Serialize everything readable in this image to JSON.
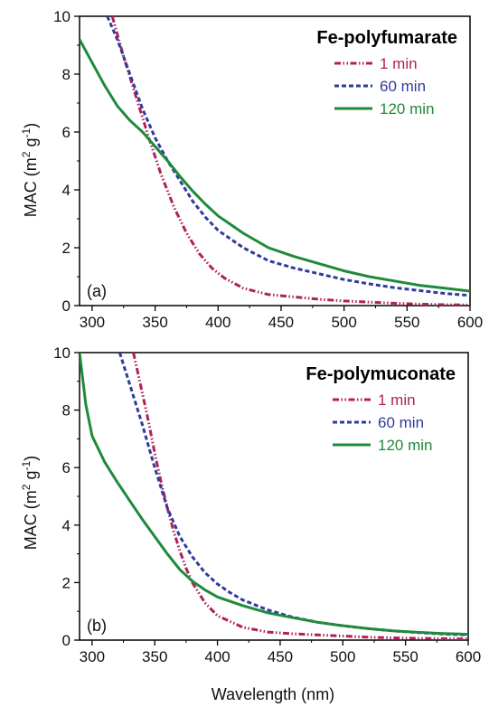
{
  "ylabel": "MAC (m",
  "ylabel_sup1": "2",
  "ylabel_mid": " g",
  "ylabel_sup2": "-1",
  "ylabel_end": ")",
  "xlabel": "Wavelength (nm)",
  "colors": {
    "1 min": "#b0215a",
    "60 min": "#2f3b9c",
    "120 min": "#1f8a3a"
  },
  "chart_data": [
    {
      "type": "line",
      "title": "Fe-polyfumarate",
      "panel_label": "(a)",
      "xlim": [
        290,
        600
      ],
      "ylim": [
        0,
        10
      ],
      "xticks": [
        "300",
        "350",
        "400",
        "450",
        "500",
        "550",
        "600"
      ],
      "yticks": [
        "0",
        "2",
        "4",
        "6",
        "8",
        "10"
      ],
      "legend_position": "top-right",
      "series": [
        {
          "name": "1 min",
          "style": "dash-dot-dot",
          "x": [
            316,
            325,
            335,
            345,
            355,
            365,
            375,
            385,
            395,
            405,
            420,
            440,
            460,
            480,
            500,
            520,
            540,
            560,
            580,
            600
          ],
          "y": [
            10,
            8.6,
            7.2,
            5.8,
            4.5,
            3.4,
            2.5,
            1.8,
            1.3,
            0.95,
            0.6,
            0.38,
            0.3,
            0.22,
            0.16,
            0.12,
            0.08,
            0.05,
            0.03,
            0.02
          ]
        },
        {
          "name": "60 min",
          "style": "dashed",
          "x": [
            312,
            320,
            330,
            340,
            350,
            360,
            370,
            380,
            390,
            400,
            420,
            440,
            460,
            480,
            500,
            520,
            540,
            560,
            580,
            600
          ],
          "y": [
            10,
            9.2,
            8.0,
            6.8,
            5.8,
            5.0,
            4.3,
            3.6,
            3.05,
            2.6,
            2.0,
            1.55,
            1.3,
            1.1,
            0.9,
            0.75,
            0.62,
            0.52,
            0.42,
            0.35
          ]
        },
        {
          "name": "120 min",
          "style": "solid",
          "x": [
            290,
            300,
            310,
            320,
            330,
            340,
            350,
            360,
            370,
            380,
            390,
            400,
            420,
            440,
            460,
            480,
            500,
            520,
            540,
            560,
            580,
            600
          ],
          "y": [
            9.2,
            8.4,
            7.6,
            6.9,
            6.4,
            6.0,
            5.5,
            5.0,
            4.45,
            3.95,
            3.5,
            3.1,
            2.5,
            2.0,
            1.7,
            1.45,
            1.2,
            1.0,
            0.85,
            0.7,
            0.6,
            0.5
          ]
        }
      ]
    },
    {
      "type": "line",
      "title": "Fe-polymuconate",
      "panel_label": "(b)",
      "xlim": [
        290,
        600
      ],
      "ylim": [
        0,
        10
      ],
      "xticks": [
        "300",
        "350",
        "400",
        "450",
        "500",
        "550",
        "600"
      ],
      "yticks": [
        "0",
        "2",
        "4",
        "6",
        "8",
        "10"
      ],
      "legend_position": "top-right",
      "series": [
        {
          "name": "1 min",
          "style": "dash-dot-dot",
          "x": [
            333,
            340,
            345,
            350,
            355,
            360,
            365,
            370,
            375,
            380,
            390,
            400,
            420,
            440,
            460,
            480,
            500,
            520,
            540,
            560,
            580,
            600
          ],
          "y": [
            10,
            8.6,
            7.6,
            6.5,
            5.5,
            4.6,
            3.8,
            3.1,
            2.5,
            2.0,
            1.3,
            0.85,
            0.45,
            0.28,
            0.22,
            0.18,
            0.14,
            0.1,
            0.08,
            0.06,
            0.05,
            0.04
          ]
        },
        {
          "name": "60 min",
          "style": "dashed",
          "x": [
            322,
            330,
            340,
            350,
            360,
            370,
            380,
            390,
            400,
            410,
            420,
            440,
            460,
            480,
            500,
            520,
            540,
            560,
            580,
            600
          ],
          "y": [
            10,
            8.9,
            7.5,
            6.0,
            4.6,
            3.6,
            2.9,
            2.35,
            1.95,
            1.65,
            1.4,
            1.05,
            0.8,
            0.62,
            0.5,
            0.4,
            0.32,
            0.26,
            0.21,
            0.18
          ]
        },
        {
          "name": "120 min",
          "style": "solid",
          "x": [
            290,
            295,
            300,
            310,
            320,
            330,
            340,
            350,
            360,
            370,
            380,
            390,
            400,
            420,
            440,
            460,
            480,
            500,
            520,
            540,
            560,
            580,
            600
          ],
          "y": [
            10,
            8.2,
            7.1,
            6.2,
            5.5,
            4.85,
            4.2,
            3.6,
            3.0,
            2.45,
            2.05,
            1.75,
            1.5,
            1.2,
            0.95,
            0.78,
            0.62,
            0.5,
            0.4,
            0.32,
            0.27,
            0.23,
            0.2
          ]
        }
      ]
    }
  ]
}
